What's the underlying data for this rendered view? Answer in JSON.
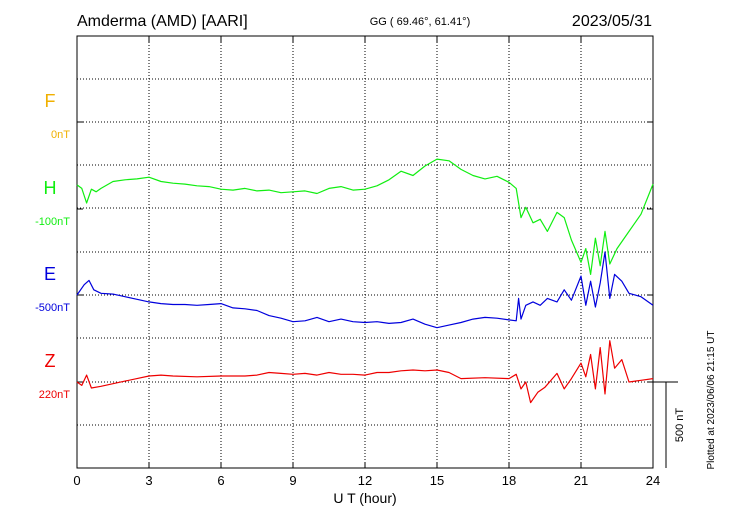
{
  "header": {
    "station": "Amderma (AMD)  [AARI]",
    "coords": "GG ( 69.46°,  61.41°)",
    "date": "2023/05/31"
  },
  "plotted_note": "Plotted at 2023/06/06 21:15 UT",
  "scale_label": "500 nT",
  "colors": {
    "F": "#f0b000",
    "H": "#11ee11",
    "E": "#0000dd",
    "Z": "#ee0000",
    "axis": "#000000",
    "grid": "#000000"
  },
  "chart_data": {
    "type": "line",
    "xlabel": "U T (hour)",
    "xlim": [
      0,
      24
    ],
    "xticks": [
      "0",
      "3",
      "6",
      "9",
      "12",
      "15",
      "18",
      "21",
      "24"
    ],
    "channels": [
      {
        "name": "F",
        "baseline_label": "0nT"
      },
      {
        "name": "H",
        "baseline_label": "-100nT"
      },
      {
        "name": "E",
        "baseline_label": "-500nT"
      },
      {
        "name": "Z",
        "baseline_label": "220nT"
      }
    ],
    "series": [
      {
        "name": "H",
        "unit": "nT",
        "x": [
          0,
          0.2,
          0.4,
          0.6,
          0.8,
          1.0,
          1.5,
          2,
          2.5,
          3,
          3.5,
          4,
          4.5,
          5,
          5.5,
          6,
          6.5,
          7,
          7.5,
          8,
          8.5,
          9,
          9.5,
          10,
          10.5,
          11,
          11.5,
          12,
          12.5,
          13,
          13.5,
          14,
          14.5,
          15,
          15.5,
          16,
          16.5,
          17,
          17.5,
          18,
          18.3,
          18.5,
          18.7,
          19,
          19.3,
          19.6,
          20,
          20.3,
          20.6,
          21,
          21.2,
          21.4,
          21.6,
          21.8,
          22,
          22.2,
          22.5,
          23,
          23.5,
          24
        ],
        "y": [
          40,
          20,
          -65,
          15,
          0,
          20,
          60,
          70,
          75,
          85,
          60,
          50,
          45,
          35,
          30,
          15,
          10,
          20,
          5,
          10,
          -5,
          0,
          5,
          -10,
          20,
          30,
          10,
          15,
          35,
          70,
          120,
          95,
          150,
          190,
          180,
          130,
          95,
          75,
          90,
          55,
          20,
          -150,
          -90,
          -180,
          -160,
          -230,
          -120,
          -150,
          -280,
          -410,
          -330,
          -480,
          -270,
          -430,
          -230,
          -420,
          -330,
          -230,
          -130,
          45
        ]
      },
      {
        "name": "E",
        "unit": "nT",
        "x": [
          0,
          0.3,
          0.5,
          0.7,
          1,
          1.5,
          2,
          2.5,
          3,
          3.5,
          4,
          4.5,
          5,
          5.5,
          6,
          6.5,
          7,
          7.5,
          8,
          8.5,
          9,
          9.5,
          10,
          10.5,
          11,
          11.5,
          12,
          12.5,
          13,
          13.5,
          14,
          14.5,
          15,
          15.5,
          16,
          16.5,
          17,
          17.5,
          18,
          18.3,
          18.4,
          18.5,
          18.7,
          19,
          19.3,
          19.6,
          20,
          20.3,
          20.6,
          21,
          21.2,
          21.4,
          21.6,
          21.8,
          22,
          22.2,
          22.4,
          22.7,
          23,
          23.5,
          24
        ],
        "y": [
          -500,
          -440,
          -415,
          -470,
          -490,
          -495,
          -510,
          -525,
          -540,
          -550,
          -555,
          -555,
          -560,
          -555,
          -550,
          -575,
          -580,
          -590,
          -620,
          -635,
          -655,
          -650,
          -630,
          -655,
          -640,
          -655,
          -660,
          -655,
          -665,
          -660,
          -640,
          -670,
          -690,
          -675,
          -660,
          -640,
          -630,
          -635,
          -645,
          -650,
          -520,
          -640,
          -560,
          -540,
          -560,
          -520,
          -540,
          -470,
          -530,
          -390,
          -560,
          -420,
          -570,
          -430,
          -250,
          -520,
          -380,
          -420,
          -490,
          -510,
          -560
        ]
      },
      {
        "name": "Z",
        "unit": "nT",
        "x": [
          0,
          0.2,
          0.4,
          0.6,
          1,
          1.5,
          2,
          2.5,
          3,
          3.5,
          4,
          5,
          6,
          7,
          7.5,
          8,
          8.5,
          9,
          9.5,
          10,
          10.5,
          11,
          11.5,
          12,
          12.5,
          13,
          13.5,
          14,
          14.5,
          15,
          15.5,
          16,
          17,
          18,
          18.3,
          18.5,
          18.7,
          18.9,
          19.2,
          19.5,
          20,
          20.3,
          20.6,
          21,
          21.2,
          21.4,
          21.6,
          21.8,
          22,
          22.2,
          22.4,
          22.7,
          23,
          23.5,
          24
        ],
        "y": [
          220,
          200,
          260,
          185,
          195,
          210,
          225,
          240,
          255,
          260,
          255,
          250,
          255,
          255,
          260,
          275,
          270,
          265,
          270,
          260,
          275,
          265,
          265,
          260,
          275,
          275,
          285,
          290,
          285,
          290,
          275,
          240,
          245,
          240,
          265,
          180,
          220,
          100,
          160,
          190,
          270,
          180,
          240,
          330,
          250,
          380,
          180,
          420,
          150,
          460,
          300,
          350,
          220,
          230,
          240
        ]
      }
    ]
  }
}
